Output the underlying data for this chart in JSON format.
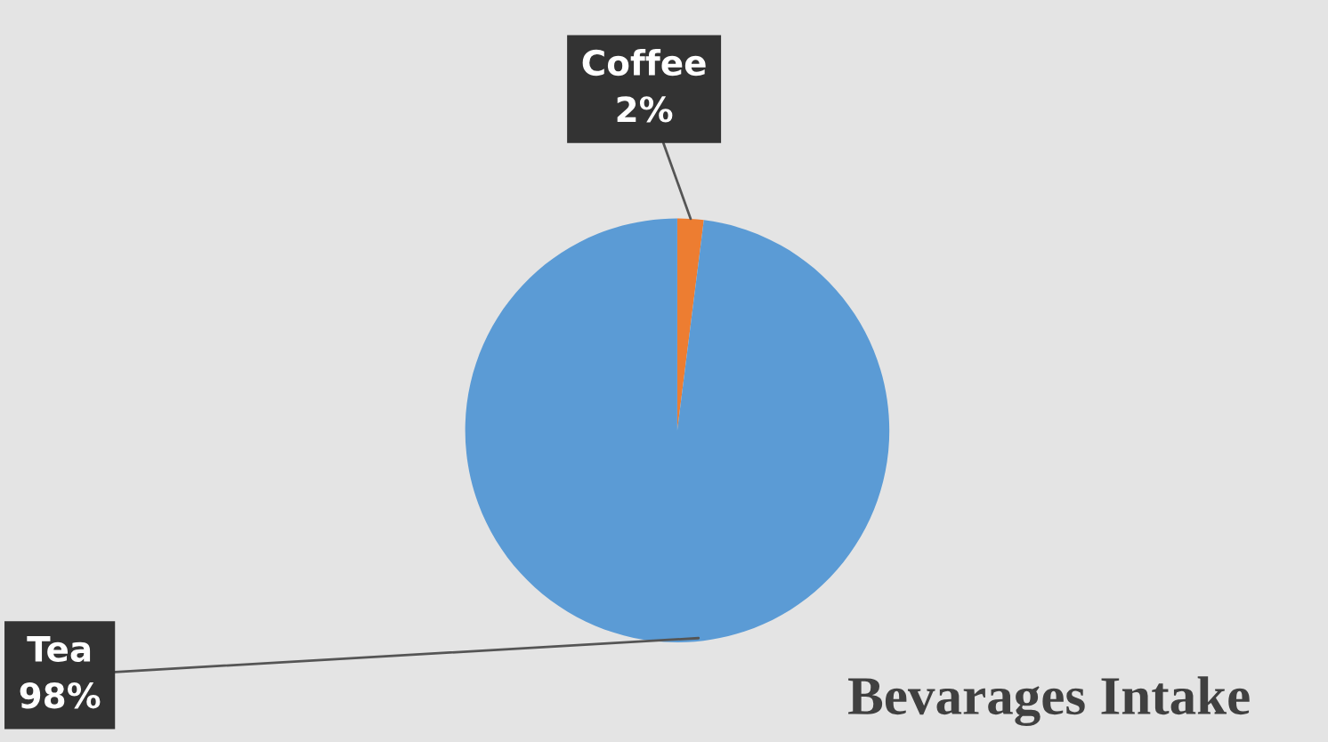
{
  "chart_data": {
    "type": "pie",
    "title": "Bevarages Intake",
    "categories": [
      "Coffee",
      "Tea"
    ],
    "values": [
      2,
      98
    ],
    "colors": [
      "#ed7d31",
      "#5b9bd5"
    ],
    "value_labels": [
      "2%",
      "98%"
    ],
    "legend": false
  }
}
